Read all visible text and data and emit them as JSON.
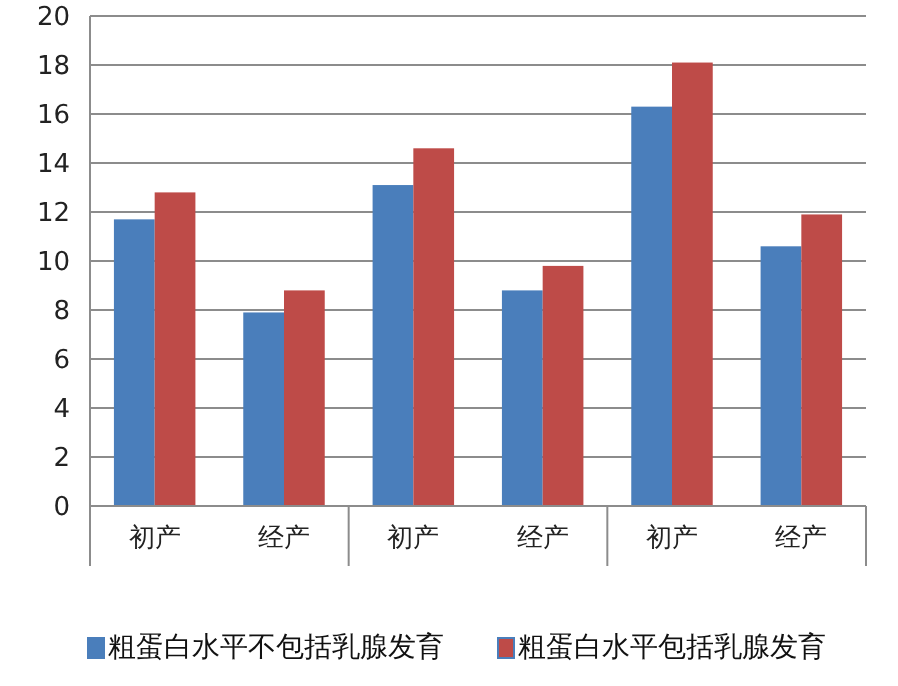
{
  "chart_data": {
    "type": "bar",
    "categories": [
      "初产",
      "经产",
      "初产",
      "经产",
      "初产",
      "经产"
    ],
    "series": [
      {
        "name": "粗蛋白水平不包括乳腺发育",
        "color": "#4a7ebb",
        "values": [
          11.7,
          7.9,
          13.1,
          8.8,
          16.3,
          10.6
        ]
      },
      {
        "name": "粗蛋白水平包括乳腺发育",
        "color": "#be4b48",
        "values": [
          12.8,
          8.8,
          14.6,
          9.8,
          18.1,
          11.9
        ]
      }
    ],
    "ylim": [
      0,
      20
    ],
    "yticks": [
      0,
      2,
      4,
      6,
      8,
      10,
      12,
      14,
      16,
      18,
      20
    ],
    "grid": "y",
    "legend": "bottom"
  }
}
